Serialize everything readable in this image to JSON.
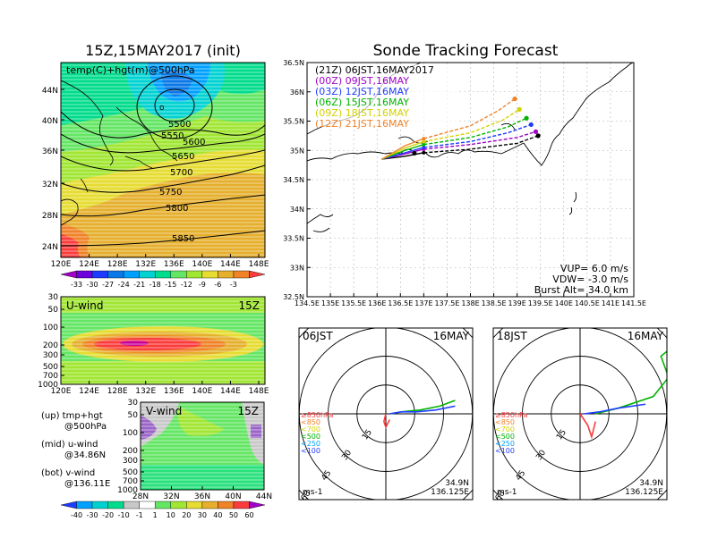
{
  "left_panel": {
    "title": "15Z,15MAY2017 (init)",
    "map_label": "temp(C)+hgt(m)@500hPa",
    "lat_ticks": [
      "44N",
      "40N",
      "36N",
      "32N",
      "28N",
      "24N"
    ],
    "lon_ticks": [
      "120E",
      "124E",
      "128E",
      "132E",
      "136E",
      "140E",
      "144E",
      "148E"
    ],
    "contour_labels": [
      "5500",
      "5550",
      "5600",
      "5650",
      "5700",
      "5750",
      "5800",
      "5850"
    ],
    "temp_colorbar": {
      "labels": [
        "-33",
        "-30",
        "-27",
        "-24",
        "-21",
        "-18",
        "-15",
        "-12",
        "-9",
        "-6",
        "-3"
      ],
      "colors": [
        "#a000c8",
        "#6e00dc",
        "#1e3cff",
        "#0a78e6",
        "#00a0ff",
        "#00d2d2",
        "#00dc8c",
        "#64e664",
        "#a0e632",
        "#e6dc32",
        "#e6af2d",
        "#f08228",
        "#fa3c3c"
      ]
    },
    "uwind": {
      "label": "U-wind",
      "time": "15Z",
      "p_ticks": [
        "30",
        "50",
        "100",
        "200",
        "300",
        "500",
        "700",
        "1000"
      ],
      "lon_ticks": [
        "120E",
        "124E",
        "128E",
        "132E",
        "136E",
        "140E",
        "144E",
        "148E"
      ]
    },
    "vwind": {
      "label": "V-wind",
      "time": "15Z",
      "p_ticks": [
        "30",
        "50",
        "100",
        "200",
        "300",
        "500",
        "700",
        "1000"
      ],
      "lat_ticks": [
        "28N",
        "32N",
        "36N",
        "40N",
        "44N"
      ]
    },
    "wind_colorbar": {
      "labels": [
        "-40",
        "-30",
        "-20",
        "-10",
        "-1",
        "1",
        "10",
        "20",
        "30",
        "40",
        "50",
        "60"
      ],
      "colors": [
        "#1e3cff",
        "#00a0ff",
        "#00d2d2",
        "#00dc8c",
        "#c8c8c8",
        "#ffffff",
        "#64e664",
        "#a0e632",
        "#e6dc32",
        "#e6af2d",
        "#f08228",
        "#fa3c3c",
        "#a000c8"
      ]
    },
    "legend_text": [
      "(up) tmp+hgt",
      "@500hPa",
      "(mid) u-wind",
      "@34.86N",
      "(bot) v-wind",
      "@136.11E"
    ]
  },
  "track_panel": {
    "title": "Sonde Tracking Forecast",
    "lat_ticks": [
      "36.5N",
      "36N",
      "35.5N",
      "35N",
      "34.5N",
      "34N",
      "33.5N",
      "33N",
      "32.5N"
    ],
    "lon_ticks": [
      "134.5E",
      "135E",
      "135.5E",
      "136E",
      "136.5E",
      "137E",
      "137.5E",
      "138E",
      "138.5E",
      "139E",
      "139.5E",
      "140E",
      "140.5E",
      "141E",
      "141.5E"
    ],
    "legend": [
      {
        "text": "(21Z)  06JST,16MAY2017",
        "color": "#000000"
      },
      {
        "text": "(00Z)  09JST,16MAY",
        "color": "#a000c8"
      },
      {
        "text": "(03Z)  12JST,16MAY",
        "color": "#1e3cff"
      },
      {
        "text": "(06Z)  15JST,16MAY",
        "color": "#00b400"
      },
      {
        "text": "(09Z)  18JST,16MAY",
        "color": "#d2d200"
      },
      {
        "text": "(12Z)  21JST,16MAY",
        "color": "#f08228"
      }
    ],
    "params": [
      "VUP=  6.0  m/s",
      "VDW=  -3.0  m/s",
      "Burst Alt=  34.0  km"
    ]
  },
  "hodographs": [
    {
      "time_left": "06JST",
      "date_right": "16MAY",
      "ring_labels": [
        "15",
        "30",
        "45",
        "60"
      ],
      "levels": [
        {
          "text": "≥850hPa",
          "color": "#fa3c3c"
        },
        {
          "text": "<850",
          "color": "#f08228"
        },
        {
          "text": "<700",
          "color": "#d2d200"
        },
        {
          "text": "<500",
          "color": "#00b400"
        },
        {
          "text": "<250",
          "color": "#00a0ff"
        },
        {
          "text": "<100",
          "color": "#1e3cff"
        }
      ],
      "unit": "ms-1",
      "lat": "34.9N",
      "lon": "136.125E"
    },
    {
      "time_left": "18JST",
      "date_right": "16MAY",
      "ring_labels": [
        "15",
        "30",
        "45",
        "60"
      ],
      "levels": [
        {
          "text": "≥850hPa",
          "color": "#fa3c3c"
        },
        {
          "text": "<850",
          "color": "#f08228"
        },
        {
          "text": "<700",
          "color": "#d2d200"
        },
        {
          "text": "<500",
          "color": "#00b400"
        },
        {
          "text": "<250",
          "color": "#00a0ff"
        },
        {
          "text": "<100",
          "color": "#1e3cff"
        }
      ],
      "unit": "ms-1",
      "lat": "34.9N",
      "lon": "136.125E"
    }
  ],
  "chart_data": [
    {
      "type": "heatmap",
      "title": "15Z,15MAY2017 (init)",
      "subtitle": "temp(C)+hgt(m)@500hPa",
      "xlim": [
        120,
        150
      ],
      "ylim": [
        22,
        48
      ],
      "contours_m": [
        5500,
        5550,
        5600,
        5650,
        5700,
        5750,
        5800,
        5850
      ]
    },
    {
      "type": "heatmap",
      "title": "U-wind",
      "xlim": [
        120,
        150
      ],
      "yticks_hPa": [
        30,
        50,
        100,
        200,
        300,
        500,
        700,
        1000
      ]
    },
    {
      "type": "heatmap",
      "title": "V-wind",
      "xlim": [
        28,
        44
      ],
      "yticks_hPa": [
        30,
        50,
        100,
        200,
        300,
        500,
        700,
        1000
      ]
    },
    {
      "type": "line",
      "title": "Sonde Tracking Forecast",
      "xlim": [
        134.5,
        141.5
      ],
      "ylim": [
        32.5,
        36.5
      ],
      "series": [
        {
          "name": "(21Z)  06JST,16MAY2017",
          "color": "#000000",
          "dash": false,
          "x": [
            136.1,
            136.6,
            137.0
          ],
          "y": [
            34.85,
            34.9,
            34.96
          ]
        },
        {
          "name": "(21Z)  06JST,16MAY2017",
          "color": "#000000",
          "dash": true,
          "x": [
            137.0,
            138.0,
            139.0,
            139.45
          ],
          "y": [
            34.96,
            35.02,
            35.12,
            35.25
          ]
        },
        {
          "name": "(00Z)  09JST,16MAY",
          "color": "#a000c8",
          "dash": false,
          "x": [
            136.1,
            136.6,
            137.0
          ],
          "y": [
            34.85,
            34.94,
            35.02
          ]
        },
        {
          "name": "(00Z)  09JST,16MAY",
          "color": "#a000c8",
          "dash": true,
          "x": [
            137.0,
            138.0,
            139.0,
            139.4
          ],
          "y": [
            35.02,
            35.1,
            35.22,
            35.32
          ]
        },
        {
          "name": "(03Z)  12JST,16MAY",
          "color": "#1e3cff",
          "dash": false,
          "x": [
            136.1,
            136.6,
            137.0
          ],
          "y": [
            34.85,
            34.96,
            35.05
          ]
        },
        {
          "name": "(03Z)  12JST,16MAY",
          "color": "#1e3cff",
          "dash": true,
          "x": [
            137.0,
            138.0,
            138.8,
            139.3
          ],
          "y": [
            35.05,
            35.15,
            35.3,
            35.44
          ]
        },
        {
          "name": "(06Z)  15JST,16MAY",
          "color": "#00b400",
          "dash": false,
          "x": [
            136.1,
            136.6,
            137.0
          ],
          "y": [
            34.85,
            35.0,
            35.1
          ]
        },
        {
          "name": "(06Z)  15JST,16MAY",
          "color": "#00b400",
          "dash": true,
          "x": [
            137.0,
            138.0,
            138.8,
            139.2
          ],
          "y": [
            35.1,
            35.22,
            35.4,
            35.55
          ]
        },
        {
          "name": "(09Z)  18JST,16MAY",
          "color": "#d2d200",
          "dash": false,
          "x": [
            136.1,
            136.6,
            137.0
          ],
          "y": [
            34.85,
            35.04,
            35.15
          ]
        },
        {
          "name": "(09Z)  18JST,16MAY",
          "color": "#d2d200",
          "dash": true,
          "x": [
            137.0,
            138.0,
            138.7,
            139.05
          ],
          "y": [
            35.15,
            35.3,
            35.52,
            35.7
          ]
        },
        {
          "name": "(12Z)  21JST,16MAY",
          "color": "#f08228",
          "dash": false,
          "x": [
            136.1,
            136.6,
            137.0
          ],
          "y": [
            34.85,
            35.08,
            35.2
          ]
        },
        {
          "name": "(12Z)  21JST,16MAY",
          "color": "#f08228",
          "dash": true,
          "x": [
            137.0,
            138.0,
            138.6,
            138.95
          ],
          "y": [
            35.2,
            35.42,
            35.68,
            35.88
          ]
        }
      ]
    },
    {
      "type": "line",
      "title": "06JST 16MAY",
      "rings_ms": [
        15,
        30,
        45,
        60
      ],
      "series": [
        {
          "name": "≥850hPa",
          "color": "#fa3c3c",
          "u": [
            0,
            -1,
            0,
            2
          ],
          "v": [
            0,
            -4,
            -7,
            -3
          ]
        },
        {
          "name": "<500",
          "color": "#00b400",
          "u": [
            2,
            8,
            18,
            28,
            36
          ],
          "v": [
            0,
            1,
            2,
            4,
            7
          ]
        },
        {
          "name": "<100",
          "color": "#1e3cff",
          "u": [
            2,
            8,
            16,
            26,
            36
          ],
          "v": [
            0,
            1,
            1,
            2,
            4
          ]
        }
      ]
    },
    {
      "type": "line",
      "title": "18JST 16MAY",
      "rings_ms": [
        15,
        30,
        45,
        60
      ],
      "series": [
        {
          "name": "≥850hPa",
          "color": "#fa3c3c",
          "u": [
            0,
            4,
            6,
            8
          ],
          "v": [
            0,
            -6,
            -12,
            -4
          ]
        },
        {
          "name": "<500",
          "color": "#00b400",
          "u": [
            8,
            20,
            38,
            46,
            42,
            52,
            48,
            56
          ],
          "v": [
            0,
            3,
            9,
            19,
            30,
            38,
            26,
            22
          ]
        },
        {
          "name": "<100",
          "color": "#1e3cff",
          "u": [
            2,
            10,
            20,
            34
          ],
          "v": [
            0,
            1,
            3,
            5
          ]
        }
      ]
    }
  ]
}
